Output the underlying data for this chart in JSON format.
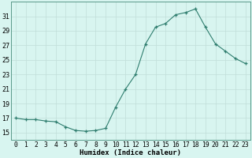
{
  "x": [
    0,
    1,
    2,
    3,
    4,
    5,
    6,
    7,
    8,
    9,
    10,
    11,
    12,
    13,
    14,
    15,
    16,
    17,
    18,
    19,
    20,
    21,
    22,
    23
  ],
  "y": [
    17.0,
    16.8,
    16.8,
    16.6,
    16.5,
    15.8,
    15.3,
    15.2,
    15.3,
    15.6,
    18.5,
    21.0,
    23.0,
    27.2,
    29.5,
    30.0,
    31.2,
    31.5,
    32.0,
    29.5,
    27.2,
    26.2,
    25.2,
    24.5
  ],
  "line_color": "#2e7d6e",
  "marker_color": "#2e7d6e",
  "bg_color": "#d8f5f0",
  "grid_color": "#c0ddd8",
  "xlabel": "Humidex (Indice chaleur)",
  "xlim": [
    -0.5,
    23.5
  ],
  "ylim": [
    14.0,
    33.0
  ],
  "yticks": [
    15,
    17,
    19,
    21,
    23,
    25,
    27,
    29,
    31
  ],
  "xtick_labels": [
    "0",
    "1",
    "2",
    "3",
    "4",
    "5",
    "6",
    "7",
    "8",
    "9",
    "10",
    "11",
    "12",
    "13",
    "14",
    "15",
    "16",
    "17",
    "18",
    "19",
    "20",
    "21",
    "22",
    "23"
  ],
  "xlabel_fontsize": 6.5,
  "tick_fontsize": 5.8,
  "spine_color": "#5a9a8a"
}
